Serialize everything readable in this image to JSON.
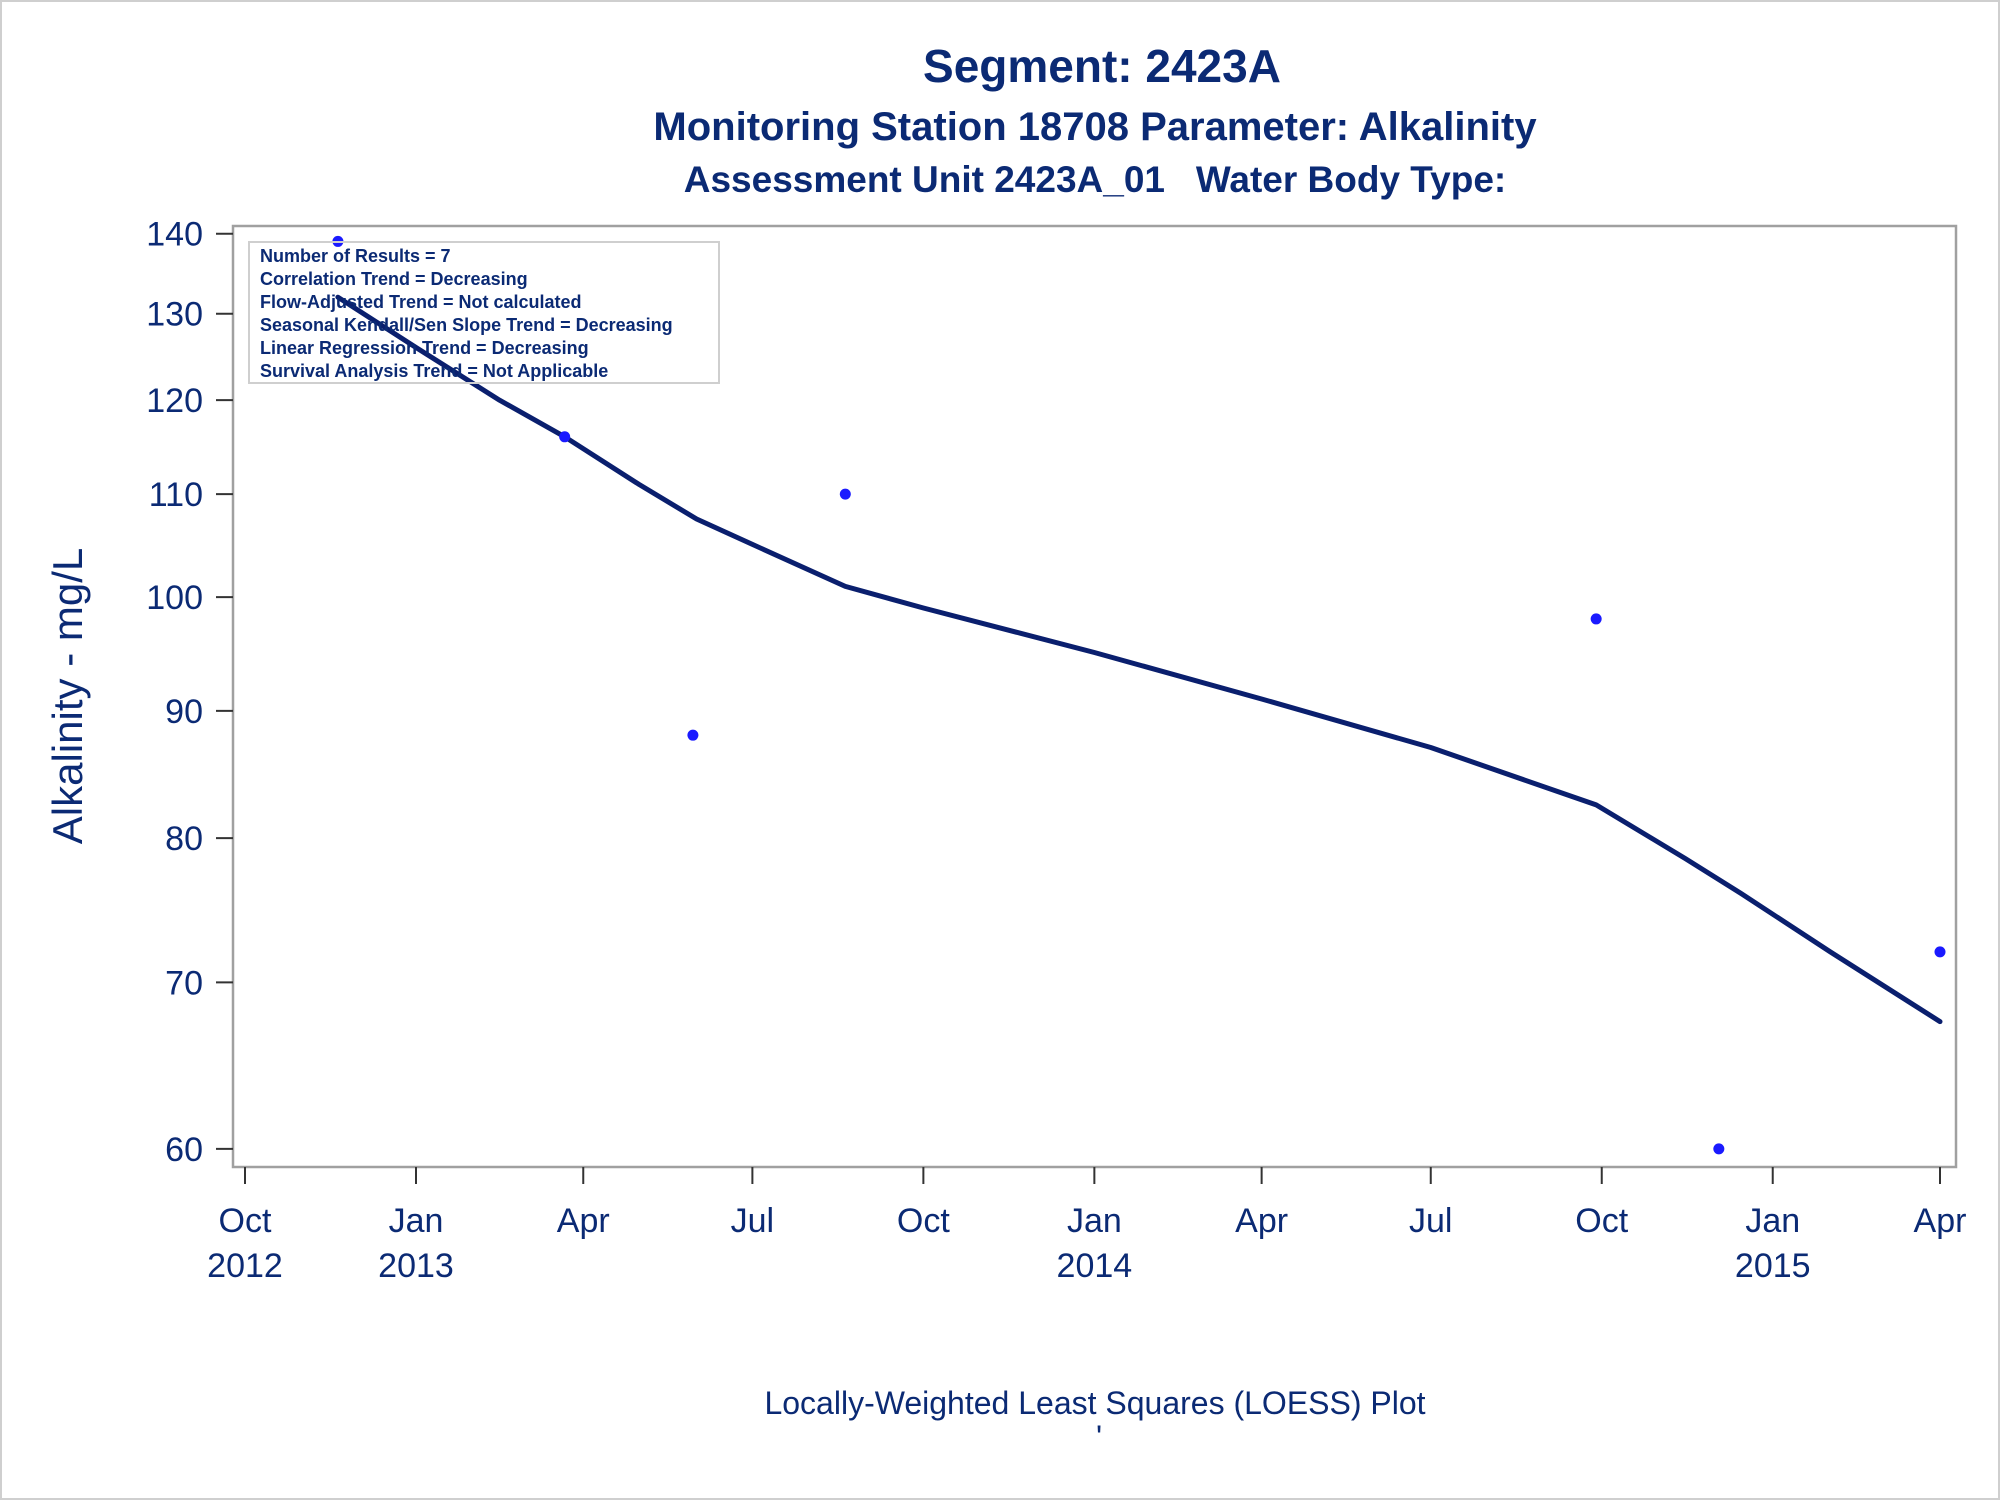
{
  "chart_data": {
    "type": "scatter",
    "title": "Segment: 2423A",
    "subtitle": "Monitoring Station 18708 Parameter: Alkalinity",
    "subtitle2": "Assessment Unit 2423A_01   Water Body Type:",
    "ylabel": "Alkalinity - mg/L",
    "footnote": "Locally-Weighted Least Squares (LOESS) Plot",
    "footnote_mark": "'",
    "y_scale": "log",
    "ylim": [
      59,
      141
    ],
    "xlim": [
      "2012-10-01",
      "2015-04-01"
    ],
    "grid": false,
    "y_ticks": [
      60,
      70,
      80,
      90,
      100,
      110,
      120,
      130,
      140
    ],
    "x_ticks": [
      {
        "date": "2012-10-01",
        "line1": "Oct",
        "line2": "2012"
      },
      {
        "date": "2013-01-01",
        "line1": "Jan",
        "line2": "2013"
      },
      {
        "date": "2013-04-01",
        "line1": "Apr",
        "line2": ""
      },
      {
        "date": "2013-07-01",
        "line1": "Jul",
        "line2": ""
      },
      {
        "date": "2013-10-01",
        "line1": "Oct",
        "line2": ""
      },
      {
        "date": "2014-01-01",
        "line1": "Jan",
        "line2": "2014"
      },
      {
        "date": "2014-04-01",
        "line1": "Apr",
        "line2": ""
      },
      {
        "date": "2014-07-01",
        "line1": "Jul",
        "line2": ""
      },
      {
        "date": "2014-10-01",
        "line1": "Oct",
        "line2": ""
      },
      {
        "date": "2015-01-01",
        "line1": "Jan",
        "line2": "2015"
      },
      {
        "date": "2015-04-01",
        "line1": "Apr",
        "line2": ""
      }
    ],
    "series": [
      {
        "kind": "points",
        "values": [
          {
            "x": "2012-11-20",
            "y": 139
          },
          {
            "x": "2013-03-22",
            "y": 116
          },
          {
            "x": "2013-05-30",
            "y": 88
          },
          {
            "x": "2013-08-20",
            "y": 110
          },
          {
            "x": "2014-09-28",
            "y": 98
          },
          {
            "x": "2014-12-03",
            "y": 60
          },
          {
            "x": "2015-04-01",
            "y": 72
          }
        ]
      },
      {
        "kind": "loess",
        "values": [
          {
            "x": "2012-11-20",
            "y": 132
          },
          {
            "x": "2013-01-01",
            "y": 126
          },
          {
            "x": "2013-02-15",
            "y": 120
          },
          {
            "x": "2013-03-22",
            "y": 116
          },
          {
            "x": "2013-05-01",
            "y": 111
          },
          {
            "x": "2013-06-01",
            "y": 107.5
          },
          {
            "x": "2013-07-01",
            "y": 105
          },
          {
            "x": "2013-08-20",
            "y": 101
          },
          {
            "x": "2013-10-01",
            "y": 99
          },
          {
            "x": "2014-01-01",
            "y": 95
          },
          {
            "x": "2014-04-01",
            "y": 91
          },
          {
            "x": "2014-07-01",
            "y": 87
          },
          {
            "x": "2014-09-28",
            "y": 82.5
          },
          {
            "x": "2014-11-15",
            "y": 78.5
          },
          {
            "x": "2014-12-15",
            "y": 76
          },
          {
            "x": "2015-02-01",
            "y": 72
          },
          {
            "x": "2015-04-01",
            "y": 67.5
          }
        ]
      }
    ],
    "colors": {
      "text": "#0b2a74",
      "points": "#1a1aff",
      "line": "#0a1f6e",
      "frame": "#a0a0a0"
    },
    "inset": {
      "lines": [
        "Number of Results = 7",
        "Correlation Trend = Decreasing",
        "Flow-Adjusted Trend = Not calculated",
        "Seasonal Kendall/Sen Slope Trend = Decreasing",
        "Linear Regression Trend = Decreasing",
        "Survival Analysis Trend = Not Applicable"
      ],
      "placement": "top-left"
    }
  }
}
